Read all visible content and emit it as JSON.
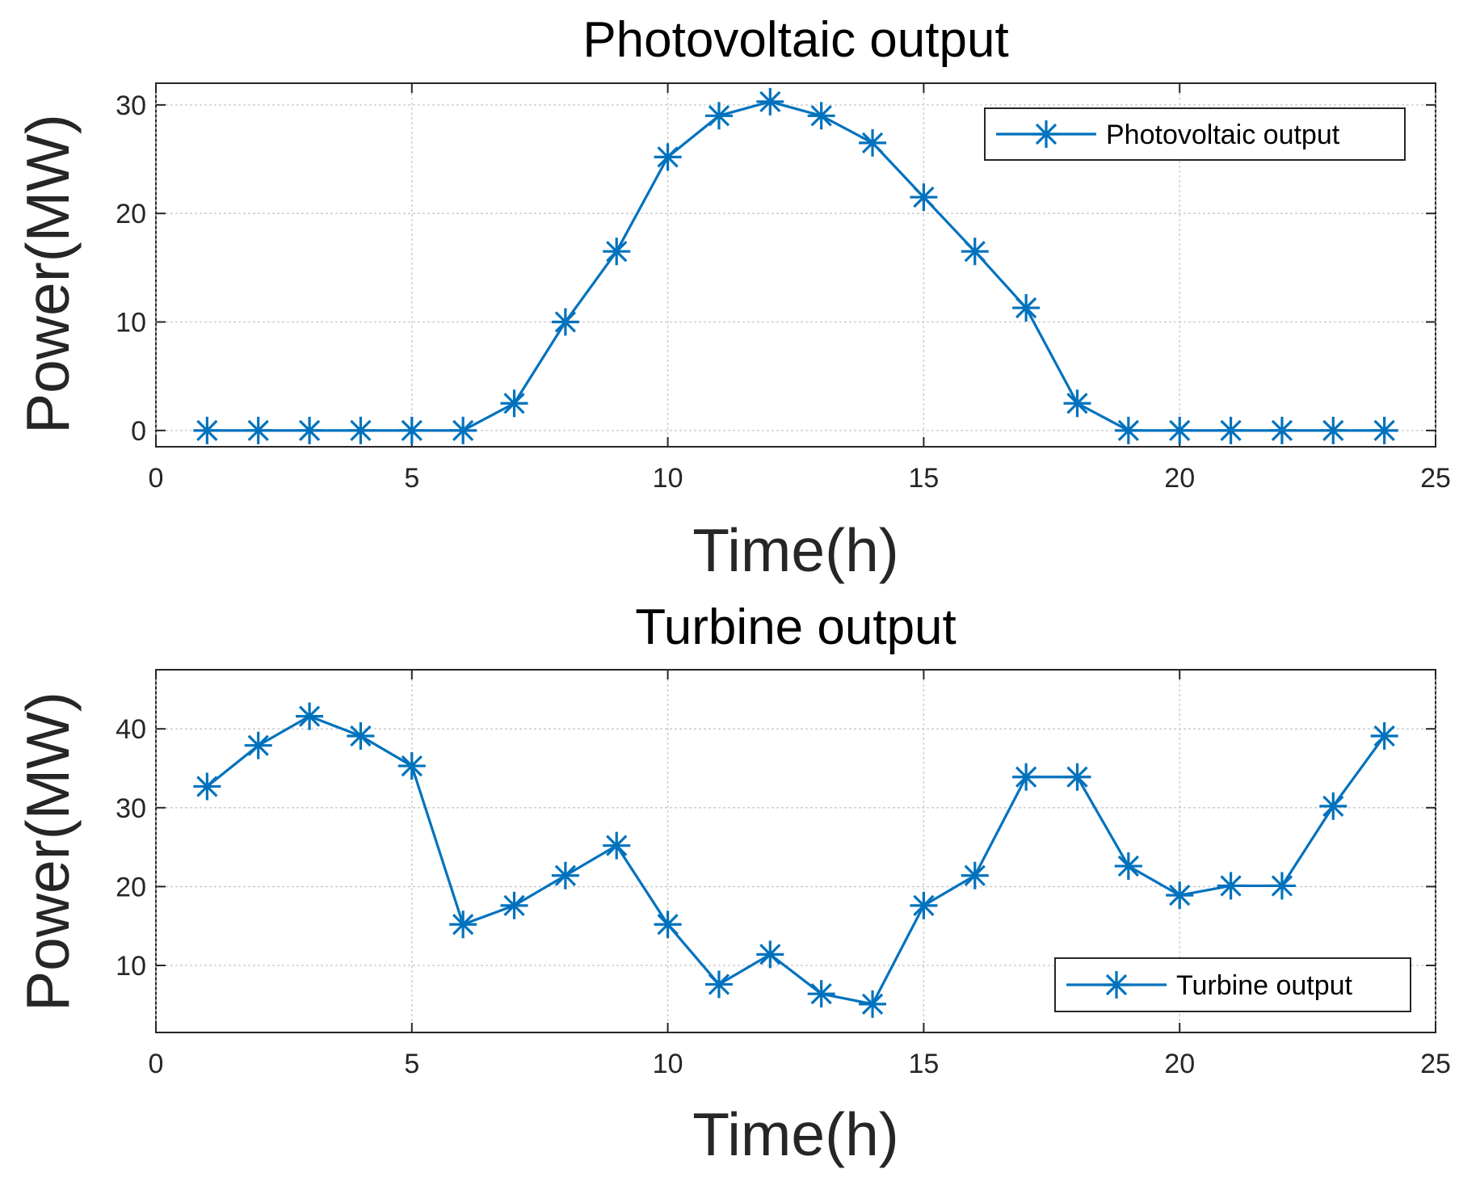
{
  "chart_data": [
    {
      "type": "line",
      "title": "Photovoltaic output",
      "xlabel": "Time(h)",
      "ylabel": "Power(MW)",
      "xlim": [
        0,
        25
      ],
      "ylim": [
        -1.5,
        32
      ],
      "xticks": [
        0,
        5,
        10,
        15,
        20,
        25
      ],
      "yticks": [
        0,
        10,
        20,
        30
      ],
      "grid": true,
      "legend_position": "top-right",
      "series": [
        {
          "name": "Photovoltaic output",
          "color": "#0072BD",
          "marker": "asterisk",
          "x": [
            1,
            2,
            3,
            4,
            5,
            6,
            7,
            8,
            9,
            10,
            11,
            12,
            13,
            14,
            15,
            16,
            17,
            18,
            19,
            20,
            21,
            22,
            23,
            24
          ],
          "values": [
            0,
            0,
            0,
            0,
            0,
            0,
            2.5,
            10,
            16.5,
            25.2,
            29,
            30.3,
            29,
            26.5,
            21.5,
            16.5,
            11.3,
            2.5,
            0,
            0,
            0,
            0,
            0,
            0
          ]
        }
      ]
    },
    {
      "type": "line",
      "title": "Turbine output",
      "xlabel": "Time(h)",
      "ylabel": "Power(MW)",
      "xlim": [
        0,
        25
      ],
      "ylim": [
        1.5,
        47.5
      ],
      "xticks": [
        0,
        5,
        10,
        15,
        20,
        25
      ],
      "yticks": [
        10,
        20,
        30,
        40
      ],
      "grid": true,
      "legend_position": "bottom-right",
      "series": [
        {
          "name": "Turbine output",
          "color": "#0072BD",
          "marker": "asterisk",
          "x": [
            1,
            2,
            3,
            4,
            5,
            6,
            7,
            8,
            9,
            10,
            11,
            12,
            13,
            14,
            15,
            16,
            17,
            18,
            19,
            20,
            21,
            22,
            23,
            24
          ],
          "values": [
            32.7,
            37.9,
            41.6,
            39.1,
            35.3,
            15.2,
            17.6,
            21.4,
            25.2,
            15.2,
            7.6,
            11.4,
            6.4,
            5.1,
            17.6,
            21.4,
            33.9,
            33.9,
            22.6,
            18.9,
            20.1,
            20.1,
            30.2,
            39.1
          ]
        }
      ]
    }
  ]
}
